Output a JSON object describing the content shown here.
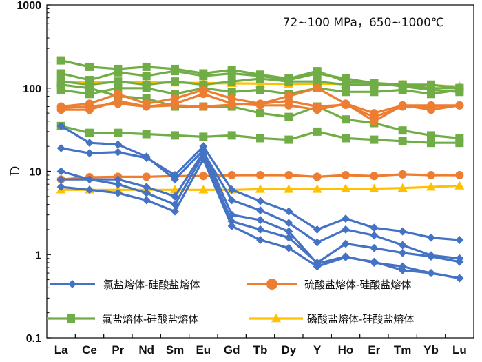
{
  "chart_data": {
    "type": "line",
    "title": "",
    "annotation": "72~100 MPa，650~1000℃",
    "xlabel": "",
    "ylabel": "D",
    "yscale": "log",
    "ylim": [
      0.1,
      1000
    ],
    "yticks": [
      "0.1",
      "1",
      "10",
      "100",
      "1000"
    ],
    "categories": [
      "La",
      "Ce",
      "Pr",
      "Nd",
      "Sm",
      "Eu",
      "Gd",
      "Tb",
      "Dy",
      "Y",
      "Ho",
      "Er",
      "Tm",
      "Yb",
      "Lu"
    ],
    "colors": {
      "chloride": "#4472C4",
      "sulfate": "#ED7D31",
      "fluoride": "#70AD47",
      "phosphate": "#FFC000"
    },
    "legend": [
      {
        "group": "chloride",
        "label": "氯盐熔体-硅酸盐熔体",
        "marker": "diamond"
      },
      {
        "group": "sulfate",
        "label": "硫酸盐熔体-硅酸盐熔体",
        "marker": "circle"
      },
      {
        "group": "fluoride",
        "label": "氟盐熔体-硅酸盐熔体",
        "marker": "square"
      },
      {
        "group": "phosphate",
        "label": "磷酸盐熔体-硅酸盐熔体",
        "marker": "triangle"
      }
    ],
    "series": [
      {
        "name": "chloride-1",
        "group": "chloride",
        "values": [
          19,
          16.5,
          17,
          14.5,
          9,
          20,
          6,
          4.4,
          3.3,
          2,
          2.7,
          2.1,
          1.9,
          1.6,
          1.5
        ]
      },
      {
        "name": "chloride-2",
        "group": "chloride",
        "values": [
          10,
          8,
          8,
          6.5,
          5,
          17,
          4.5,
          3.4,
          2.4,
          1.4,
          2,
          1.7,
          1.3,
          0.98,
          0.9
        ]
      },
      {
        "name": "chloride-3",
        "group": "chloride",
        "values": [
          8,
          8,
          7,
          5.5,
          4,
          16,
          2.5,
          2,
          1.6,
          0.8,
          1.35,
          1.2,
          1.05,
          0.95,
          0.82
        ]
      },
      {
        "name": "chloride-4",
        "group": "chloride",
        "values": [
          6.5,
          6,
          5.5,
          4.5,
          3.3,
          14,
          2.2,
          1.5,
          1.2,
          0.72,
          0.93,
          0.82,
          0.65,
          0.6,
          0.52
        ]
      },
      {
        "name": "chloride-5",
        "group": "chloride",
        "values": [
          35,
          22,
          21,
          15,
          8,
          18,
          3,
          2.6,
          1.9,
          0.78,
          0.95,
          0.8,
          0.72,
          0.6,
          0.52
        ]
      },
      {
        "name": "sulfate-1",
        "group": "sulfate",
        "values": [
          60,
          65,
          85,
          65,
          75,
          95,
          75,
          65,
          80,
          100,
          65,
          40,
          62,
          62,
          62
        ]
      },
      {
        "name": "sulfate-2",
        "group": "sulfate",
        "values": [
          55,
          55,
          70,
          60,
          65,
          85,
          65,
          62,
          62,
          55,
          65,
          50,
          62,
          55,
          62
        ]
      },
      {
        "name": "sulfate-3",
        "group": "sulfate",
        "values": [
          58,
          60,
          65,
          60,
          62,
          60,
          63,
          65,
          70,
          60,
          63,
          45,
          60,
          60,
          62
        ]
      },
      {
        "name": "sulfate-4",
        "group": "sulfate",
        "values": [
          8,
          8.5,
          8.6,
          8.6,
          8.8,
          8.8,
          9,
          9,
          9,
          8.6,
          9,
          8.8,
          9.2,
          9,
          9
        ]
      },
      {
        "name": "fluoride-1",
        "group": "fluoride",
        "values": [
          215,
          180,
          170,
          180,
          170,
          150,
          165,
          145,
          130,
          160,
          120,
          115,
          110,
          110,
          100
        ]
      },
      {
        "name": "fluoride-2",
        "group": "fluoride",
        "values": [
          150,
          125,
          155,
          140,
          160,
          140,
          150,
          140,
          125,
          150,
          130,
          115,
          105,
          95,
          90
        ]
      },
      {
        "name": "fluoride-3",
        "group": "fluoride",
        "values": [
          120,
          110,
          120,
          110,
          120,
          110,
          120,
          130,
          120,
          120,
          110,
          110,
          110,
          100,
          100
        ]
      },
      {
        "name": "fluoride-4",
        "group": "fluoride",
        "values": [
          110,
          100,
          80,
          75,
          60,
          60,
          60,
          50,
          45,
          60,
          42,
          38,
          31,
          27,
          25
        ]
      },
      {
        "name": "fluoride-5",
        "group": "fluoride",
        "values": [
          95,
          85,
          100,
          100,
          85,
          100,
          90,
          95,
          85,
          100,
          90,
          90,
          95,
          85,
          95
        ]
      },
      {
        "name": "fluoride-6",
        "group": "fluoride",
        "values": [
          35,
          29,
          29,
          28,
          27,
          26,
          27,
          25,
          24,
          30,
          25,
          24,
          23,
          22,
          22
        ]
      },
      {
        "name": "phosphate-1",
        "group": "phosphate",
        "values": [
          118,
          117,
          118,
          117,
          116,
          115,
          114,
          113,
          112,
          113,
          112,
          112,
          110,
          108,
          105
        ]
      },
      {
        "name": "phosphate-2",
        "group": "phosphate",
        "values": [
          6,
          6,
          6,
          6,
          6,
          6,
          6,
          6.1,
          6.1,
          6.1,
          6.2,
          6.2,
          6.3,
          6.5,
          6.7
        ]
      }
    ]
  }
}
